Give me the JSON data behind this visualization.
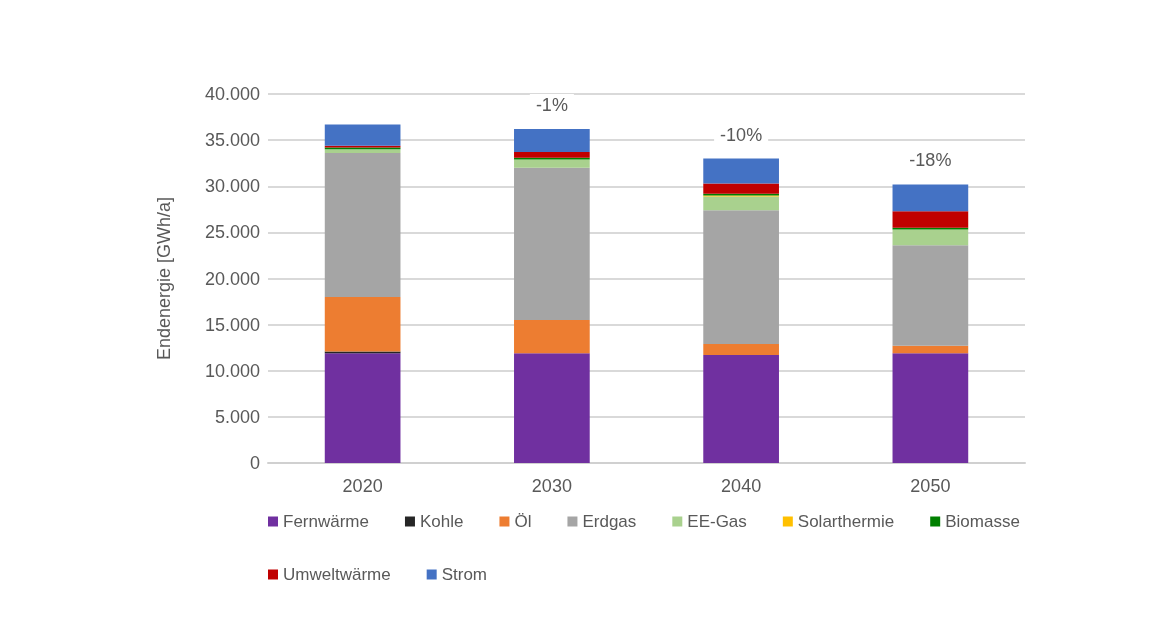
{
  "chart_data": {
    "type": "bar",
    "stacked": true,
    "ylabel": "Endenergie [GWh/a]",
    "categories": [
      "2020",
      "2030",
      "2040",
      "2050"
    ],
    "series": [
      {
        "name": "Fernwärme",
        "color": "#7030a0",
        "values": [
          11900,
          11900,
          11700,
          11900
        ]
      },
      {
        "name": "Kohle",
        "color": "#262626",
        "values": [
          200,
          0,
          0,
          0
        ]
      },
      {
        "name": "Öl",
        "color": "#ed7d31",
        "values": [
          5900,
          3600,
          1200,
          800
        ]
      },
      {
        "name": "Erdgas",
        "color": "#a5a5a5",
        "values": [
          15600,
          16500,
          14500,
          10900
        ]
      },
      {
        "name": "EE-Gas",
        "color": "#a9d18e",
        "values": [
          400,
          900,
          1500,
          1700
        ]
      },
      {
        "name": "Solarthermie",
        "color": "#ffc000",
        "values": [
          0,
          0,
          100,
          0
        ]
      },
      {
        "name": "Biomasse",
        "color": "#008000",
        "values": [
          200,
          200,
          200,
          200
        ]
      },
      {
        "name": "Umweltwärme",
        "color": "#c00000",
        "values": [
          200,
          600,
          1100,
          1800
        ]
      },
      {
        "name": "Strom",
        "color": "#4472c4",
        "values": [
          2300,
          2500,
          2700,
          2900
        ]
      }
    ],
    "ylim": [
      0,
      40000
    ],
    "yticks": [
      {
        "value": 0,
        "label": "0"
      },
      {
        "value": 5000,
        "label": "5.000"
      },
      {
        "value": 10000,
        "label": "10.000"
      },
      {
        "value": 15000,
        "label": "15.000"
      },
      {
        "value": 20000,
        "label": "20.000"
      },
      {
        "value": 25000,
        "label": "25.000"
      },
      {
        "value": 30000,
        "label": "30.000"
      },
      {
        "value": 35000,
        "label": "35.000"
      },
      {
        "value": 40000,
        "label": "40.000"
      }
    ],
    "annotations": [
      "-1%",
      "-10%",
      "-18%"
    ],
    "grid": "y",
    "legend": "bottom"
  }
}
